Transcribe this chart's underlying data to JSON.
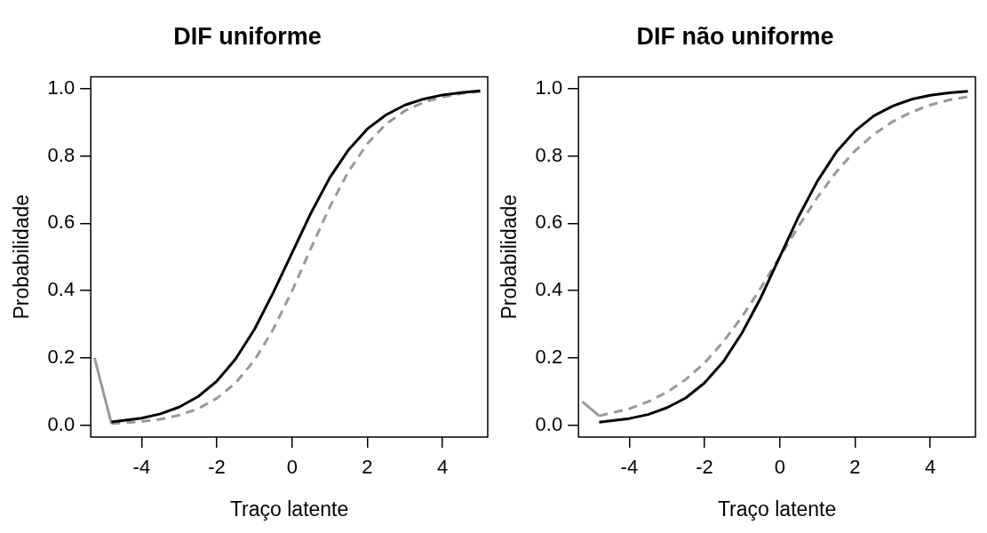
{
  "chart_data": [
    {
      "type": "line",
      "title": "DIF uniforme",
      "xlabel": "Traço latente",
      "ylabel": "Probabilidade",
      "xlim": [
        -5.35,
        5.2
      ],
      "ylim": [
        -0.035,
        1.035
      ],
      "xticks": [
        -4,
        -2,
        0,
        2,
        4
      ],
      "yticks": [
        {
          "value": 0,
          "label": "0.0"
        },
        {
          "value": 0.2,
          "label": "0.2"
        },
        {
          "value": 0.4,
          "label": "0.4"
        },
        {
          "value": 0.6,
          "label": "0.6"
        },
        {
          "value": 0.8,
          "label": "0.8"
        },
        {
          "value": 1,
          "label": "1.0"
        }
      ],
      "grid": false,
      "legend": false,
      "marker": "none",
      "x": [
        -5.25,
        -4.8,
        -4,
        -3.5,
        -3,
        -2.5,
        -2,
        -1.5,
        -1,
        -0.5,
        0,
        0.5,
        1,
        1.5,
        2,
        2.5,
        3,
        3.5,
        4,
        4.5,
        5
      ],
      "series": [
        {
          "color": "#000000",
          "line_style": "solid",
          "values": [
            null,
            0.01,
            0.021,
            0.034,
            0.054,
            0.085,
            0.131,
            0.197,
            0.285,
            0.394,
            0.512,
            0.63,
            0.735,
            0.818,
            0.88,
            0.922,
            0.951,
            0.969,
            0.981,
            0.988,
            0.993
          ]
        },
        {
          "color": "#999999",
          "line_style": "dashed",
          "values": [
            null,
            0.005,
            0.011,
            0.018,
            0.03,
            0.049,
            0.08,
            0.126,
            0.193,
            0.285,
            0.399,
            0.525,
            0.648,
            0.754,
            0.836,
            0.895,
            0.934,
            0.959,
            0.975,
            0.985,
            0.991
          ]
        },
        {
          "color": "#999999",
          "line_style": "solid",
          "values": [
            0.2,
            0.005,
            null,
            null,
            null,
            null,
            null,
            null,
            null,
            null,
            null,
            null,
            null,
            null,
            null,
            null,
            null,
            null,
            null,
            null,
            null
          ]
        }
      ]
    },
    {
      "type": "line",
      "title": "DIF não uniforme",
      "xlabel": "Traço latente",
      "ylabel": "Probabilidade",
      "xlim": [
        -5.35,
        5.2
      ],
      "ylim": [
        -0.035,
        1.035
      ],
      "xticks": [
        -4,
        -2,
        0,
        2,
        4
      ],
      "yticks": [
        {
          "value": 0,
          "label": "0.0"
        },
        {
          "value": 0.2,
          "label": "0.2"
        },
        {
          "value": 0.4,
          "label": "0.4"
        },
        {
          "value": 0.6,
          "label": "0.6"
        },
        {
          "value": 0.8,
          "label": "0.8"
        },
        {
          "value": 1,
          "label": "1.0"
        }
      ],
      "grid": false,
      "legend": false,
      "marker": "none",
      "x": [
        -5.25,
        -4.8,
        -4,
        -3.5,
        -3,
        -2.5,
        -2,
        -1.5,
        -1,
        -0.5,
        0,
        0.5,
        1,
        1.5,
        2,
        2.5,
        3,
        3.5,
        4,
        4.5,
        5
      ],
      "series": [
        {
          "color": "#000000",
          "line_style": "solid",
          "values": [
            null,
            0.009,
            0.02,
            0.032,
            0.052,
            0.081,
            0.126,
            0.189,
            0.275,
            0.38,
            0.5,
            0.62,
            0.725,
            0.811,
            0.874,
            0.919,
            0.948,
            0.968,
            0.98,
            0.987,
            0.992
          ]
        },
        {
          "color": "#999999",
          "line_style": "dashed",
          "values": [
            null,
            0.028,
            0.049,
            0.07,
            0.098,
            0.136,
            0.185,
            0.248,
            0.323,
            0.409,
            0.5,
            0.591,
            0.677,
            0.752,
            0.815,
            0.864,
            0.902,
            0.93,
            0.951,
            0.966,
            0.976
          ]
        },
        {
          "color": "#999999",
          "line_style": "solid",
          "values": [
            0.07,
            0.028,
            null,
            null,
            null,
            null,
            null,
            null,
            null,
            null,
            null,
            null,
            null,
            null,
            null,
            null,
            null,
            null,
            null,
            null,
            null
          ]
        }
      ]
    }
  ]
}
